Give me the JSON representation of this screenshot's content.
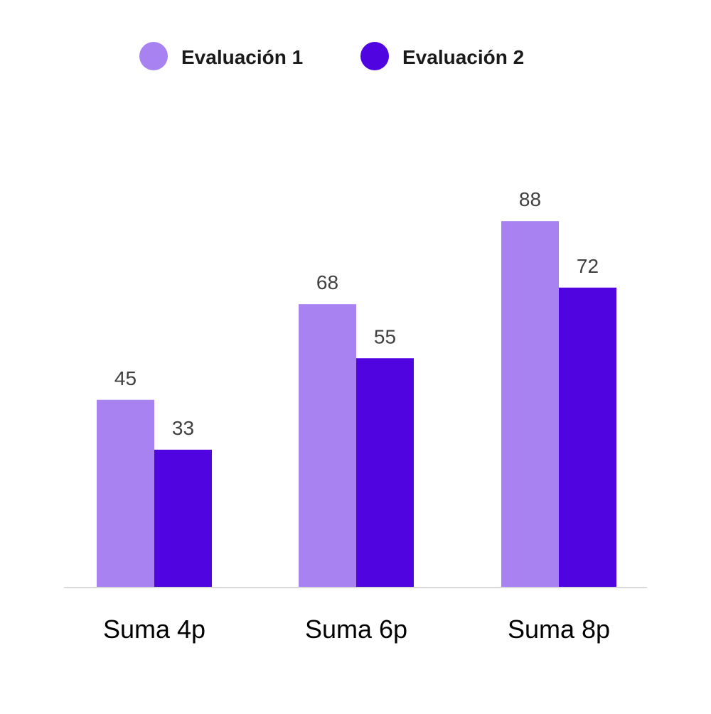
{
  "chart_data": {
    "type": "bar",
    "categories": [
      "Suma 4p",
      "Suma 6p",
      "Suma 8p"
    ],
    "series": [
      {
        "name": "Evaluación 1",
        "values": [
          45,
          68,
          88
        ],
        "color": "#a782f0"
      },
      {
        "name": "Evaluación 2",
        "values": [
          33,
          55,
          72
        ],
        "color": "#4f04e0"
      }
    ],
    "ylim": [
      0,
      100
    ],
    "grid": false,
    "legend_position": "top-center",
    "show_data_labels": true,
    "axis_line_color": "#d9d9d9"
  }
}
